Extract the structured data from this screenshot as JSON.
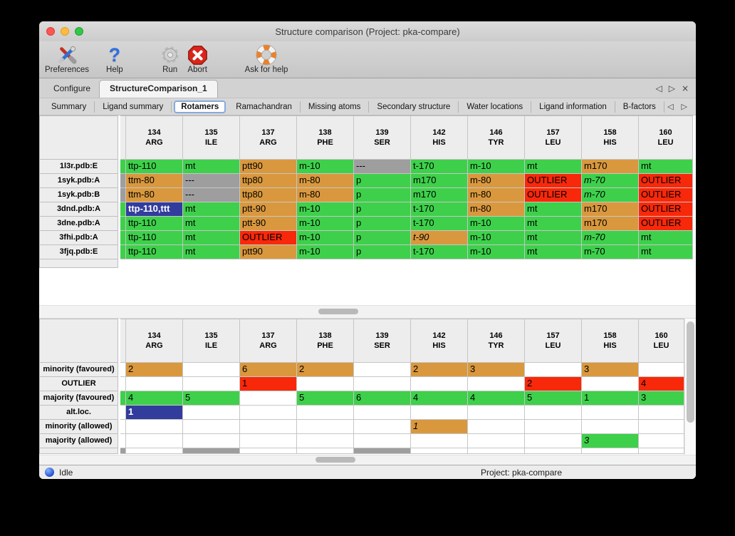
{
  "window": {
    "title": "Structure comparison (Project: pka-compare)"
  },
  "toolbar": {
    "items": [
      {
        "label": "Preferences",
        "icon": "tools-icon"
      },
      {
        "label": "Help",
        "icon": "question-icon"
      },
      {
        "label": "Run",
        "icon": "gear-icon"
      },
      {
        "label": "Abort",
        "icon": "stop-icon"
      },
      {
        "label": "Ask for help",
        "icon": "lifering-icon"
      }
    ]
  },
  "tabs": {
    "nav": [
      "◁",
      "▷",
      "×"
    ],
    "items": [
      {
        "label": "Configure",
        "active": false
      },
      {
        "label": "StructureComparison_1",
        "active": true
      }
    ]
  },
  "subtabs": {
    "nav": [
      "◁",
      "▷"
    ],
    "active": "Rotamers",
    "items": [
      "Summary",
      "Ligand summary",
      "Rotamers",
      "Ramachandran",
      "Missing atoms",
      "Secondary structure",
      "Water locations",
      "Ligand information",
      "B-factors"
    ]
  },
  "colors": {
    "green": "#3ed04b",
    "orange": "#d9983e",
    "red": "#f8280a",
    "gray": "#9e9e9e",
    "blue": "#323c9d"
  },
  "columns": [
    {
      "num": "134",
      "res": "ARG"
    },
    {
      "num": "135",
      "res": "ILE"
    },
    {
      "num": "137",
      "res": "ARG"
    },
    {
      "num": "138",
      "res": "PHE"
    },
    {
      "num": "139",
      "res": "SER"
    },
    {
      "num": "142",
      "res": "HIS"
    },
    {
      "num": "146",
      "res": "TYR"
    },
    {
      "num": "157",
      "res": "LEU"
    },
    {
      "num": "158",
      "res": "HIS"
    },
    {
      "num": "160",
      "res": "LEU"
    }
  ],
  "rotamer_table": {
    "trailing_label_cell": true,
    "rows": [
      {
        "label": "1l3r.pdb:E",
        "stub": "green",
        "cells": [
          {
            "t": "ttp-110",
            "c": "green"
          },
          {
            "t": "mt",
            "c": "green"
          },
          {
            "t": "ptt90",
            "c": "orange"
          },
          {
            "t": "m-10",
            "c": "green"
          },
          {
            "t": "---",
            "c": "gray"
          },
          {
            "t": "t-170",
            "c": "green"
          },
          {
            "t": "m-10",
            "c": "green"
          },
          {
            "t": "mt",
            "c": "green"
          },
          {
            "t": "m170",
            "c": "orange"
          },
          {
            "t": "mt",
            "c": "green"
          }
        ]
      },
      {
        "label": "1syk.pdb:A",
        "stub": "gray",
        "cells": [
          {
            "t": "ttm-80",
            "c": "orange"
          },
          {
            "t": "---",
            "c": "gray"
          },
          {
            "t": "ttp80",
            "c": "orange"
          },
          {
            "t": "m-80",
            "c": "orange"
          },
          {
            "t": "p",
            "c": "green"
          },
          {
            "t": "m170",
            "c": "green"
          },
          {
            "t": "m-80",
            "c": "orange"
          },
          {
            "t": "OUTLIER",
            "c": "red"
          },
          {
            "t": "m-70",
            "c": "green",
            "i": true
          },
          {
            "t": "OUTLIER",
            "c": "red"
          }
        ]
      },
      {
        "label": "1syk.pdb:B",
        "stub": "gray",
        "cells": [
          {
            "t": "ttm-80",
            "c": "orange"
          },
          {
            "t": "---",
            "c": "gray"
          },
          {
            "t": "ttp80",
            "c": "orange"
          },
          {
            "t": "m-80",
            "c": "orange"
          },
          {
            "t": "p",
            "c": "green"
          },
          {
            "t": "m170",
            "c": "green"
          },
          {
            "t": "m-80",
            "c": "orange"
          },
          {
            "t": "OUTLIER",
            "c": "red"
          },
          {
            "t": "m-70",
            "c": "green",
            "i": true
          },
          {
            "t": "OUTLIER",
            "c": "red"
          }
        ]
      },
      {
        "label": "3dnd.pdb:A",
        "stub": "green",
        "cells": [
          {
            "t": "ttp-110,ttt",
            "c": "blue"
          },
          {
            "t": "mt",
            "c": "green"
          },
          {
            "t": "ptt-90",
            "c": "orange"
          },
          {
            "t": "m-10",
            "c": "green"
          },
          {
            "t": "p",
            "c": "green"
          },
          {
            "t": "t-170",
            "c": "green"
          },
          {
            "t": "m-80",
            "c": "orange"
          },
          {
            "t": "mt",
            "c": "green"
          },
          {
            "t": "m170",
            "c": "orange"
          },
          {
            "t": "OUTLIER",
            "c": "red"
          }
        ]
      },
      {
        "label": "3dne.pdb:A",
        "stub": "green",
        "cells": [
          {
            "t": "ttp-110",
            "c": "green"
          },
          {
            "t": "mt",
            "c": "green"
          },
          {
            "t": "ptt-90",
            "c": "orange"
          },
          {
            "t": "m-10",
            "c": "green"
          },
          {
            "t": "p",
            "c": "green"
          },
          {
            "t": "t-170",
            "c": "green"
          },
          {
            "t": "m-10",
            "c": "green"
          },
          {
            "t": "mt",
            "c": "green"
          },
          {
            "t": "m170",
            "c": "orange"
          },
          {
            "t": "OUTLIER",
            "c": "red"
          }
        ]
      },
      {
        "label": "3fhi.pdb:A",
        "stub": "green",
        "cells": [
          {
            "t": "ttp-110",
            "c": "green"
          },
          {
            "t": "mt",
            "c": "green"
          },
          {
            "t": "OUTLIER",
            "c": "red"
          },
          {
            "t": "m-10",
            "c": "green"
          },
          {
            "t": "p",
            "c": "green"
          },
          {
            "t": "t-90",
            "c": "orange",
            "i": true
          },
          {
            "t": "m-10",
            "c": "green"
          },
          {
            "t": "mt",
            "c": "green"
          },
          {
            "t": "m-70",
            "c": "green",
            "i": true
          },
          {
            "t": "mt",
            "c": "green"
          }
        ]
      },
      {
        "label": "3fjq.pdb:E",
        "stub": "green",
        "cells": [
          {
            "t": "ttp-110",
            "c": "green"
          },
          {
            "t": "mt",
            "c": "green"
          },
          {
            "t": "ptt90",
            "c": "orange"
          },
          {
            "t": "m-10",
            "c": "green"
          },
          {
            "t": "p",
            "c": "green"
          },
          {
            "t": "t-170",
            "c": "green"
          },
          {
            "t": "m-10",
            "c": "green"
          },
          {
            "t": "mt",
            "c": "green"
          },
          {
            "t": "m-70",
            "c": "green"
          },
          {
            "t": "mt",
            "c": "green"
          }
        ]
      }
    ]
  },
  "count_table": {
    "rows": [
      {
        "label": "minority (favoured)",
        "stub": null,
        "cells": [
          {
            "t": "2",
            "c": "orange"
          },
          null,
          {
            "t": "6",
            "c": "orange"
          },
          {
            "t": "2",
            "c": "orange"
          },
          null,
          {
            "t": "2",
            "c": "orange"
          },
          {
            "t": "3",
            "c": "orange"
          },
          null,
          {
            "t": "3",
            "c": "orange"
          },
          null
        ]
      },
      {
        "label": "OUTLIER",
        "stub": null,
        "cells": [
          null,
          null,
          {
            "t": "1",
            "c": "red"
          },
          null,
          null,
          null,
          null,
          {
            "t": "2",
            "c": "red"
          },
          null,
          {
            "t": "4",
            "c": "red"
          }
        ]
      },
      {
        "label": "majority (favoured)",
        "stub": "green",
        "cells": [
          {
            "t": "4",
            "c": "green"
          },
          {
            "t": "5",
            "c": "green"
          },
          null,
          {
            "t": "5",
            "c": "green"
          },
          {
            "t": "6",
            "c": "green"
          },
          {
            "t": "4",
            "c": "green"
          },
          {
            "t": "4",
            "c": "green"
          },
          {
            "t": "5",
            "c": "green"
          },
          {
            "t": "1",
            "c": "green"
          },
          {
            "t": "3",
            "c": "green"
          }
        ]
      },
      {
        "label": "alt.loc.",
        "stub": null,
        "cells": [
          {
            "t": "1",
            "c": "blue"
          },
          null,
          null,
          null,
          null,
          null,
          null,
          null,
          null,
          null
        ]
      },
      {
        "label": "minority (allowed)",
        "stub": null,
        "cells": [
          null,
          null,
          null,
          null,
          null,
          {
            "t": "1",
            "c": "orange",
            "i": true
          },
          null,
          null,
          null,
          null
        ]
      },
      {
        "label": "majority (allowed)",
        "stub": null,
        "cells": [
          null,
          null,
          null,
          null,
          null,
          null,
          null,
          null,
          {
            "t": "3",
            "c": "green",
            "i": true
          },
          null
        ]
      },
      {
        "label": "",
        "stub": "gray",
        "partial": true,
        "cells": [
          null,
          {
            "t": "",
            "c": "gray"
          },
          null,
          null,
          {
            "t": "",
            "c": "gray"
          },
          null,
          null,
          null,
          null,
          null
        ]
      }
    ]
  },
  "statusbar": {
    "status": "Idle",
    "project": "Project: pka-compare"
  }
}
